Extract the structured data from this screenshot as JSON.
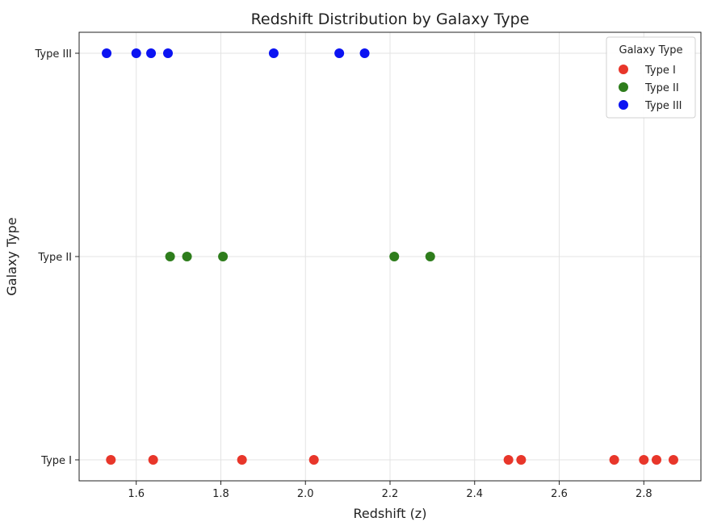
{
  "chart_data": {
    "type": "scatter",
    "title": "Redshift Distribution by Galaxy Type",
    "xlabel": "Redshift (z)",
    "ylabel": "Galaxy Type",
    "xlim": [
      1.465,
      2.935
    ],
    "x_ticks": [
      1.6,
      1.8,
      2.0,
      2.2,
      2.4,
      2.6,
      2.8
    ],
    "x_tick_labels": [
      "1.6",
      "1.8",
      "2.0",
      "2.2",
      "2.4",
      "2.6",
      "2.8"
    ],
    "categories": [
      "Type I",
      "Type II",
      "Type III"
    ],
    "grid": true,
    "legend": {
      "title": "Galaxy Type",
      "position": "top-right"
    },
    "series": [
      {
        "name": "Type I",
        "color": "#e8362a",
        "category": "Type I",
        "x": [
          1.54,
          1.64,
          1.85,
          2.02,
          2.48,
          2.51,
          2.73,
          2.8,
          2.83,
          2.87
        ]
      },
      {
        "name": "Type II",
        "color": "#2e7d1c",
        "category": "Type II",
        "x": [
          1.68,
          1.72,
          1.805,
          2.21,
          2.295
        ]
      },
      {
        "name": "Type III",
        "color": "#0b13f2",
        "category": "Type III",
        "x": [
          1.53,
          1.6,
          1.635,
          1.675,
          1.925,
          2.08,
          2.14
        ]
      }
    ]
  }
}
